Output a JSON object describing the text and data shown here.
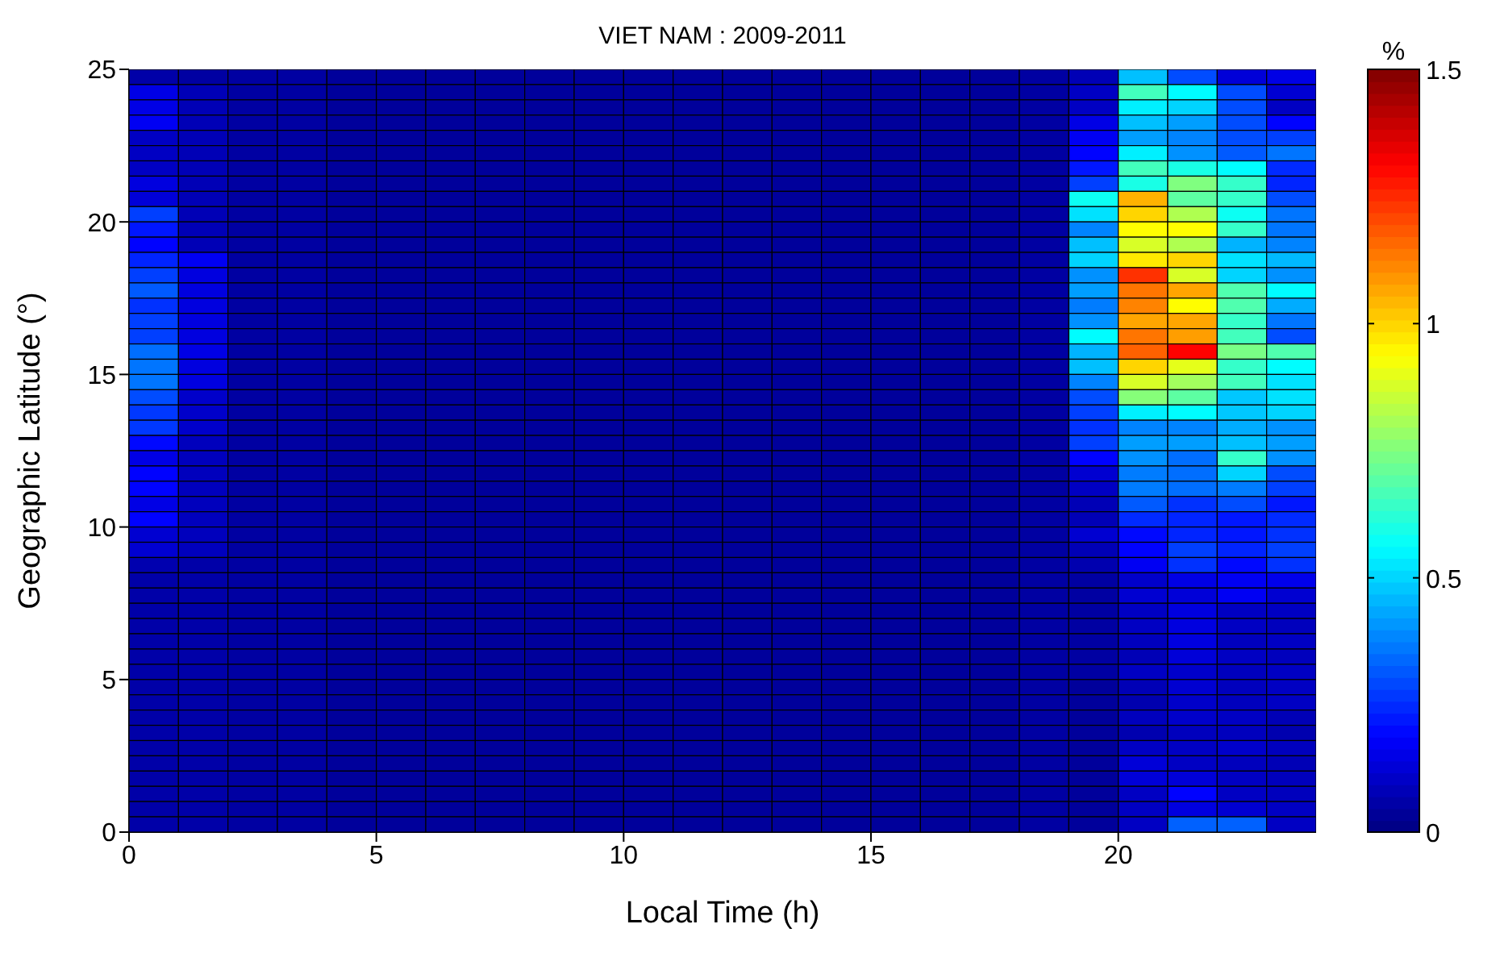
{
  "chart_data": {
    "type": "heatmap",
    "title": "VIET NAM : 2009-2011",
    "xlabel": "Local Time (h)",
    "ylabel": "Geographic Latitude (°)",
    "clabel": "%",
    "x": [
      0.5,
      1.5,
      2.5,
      3.5,
      4.5,
      5.5,
      6.5,
      7.5,
      8.5,
      9.5,
      10.5,
      11.5,
      12.5,
      13.5,
      14.5,
      15.5,
      16.5,
      17.5,
      18.5,
      19.5,
      20.5,
      21.5,
      22.5,
      23.5
    ],
    "y": [
      24.75,
      24.25,
      23.75,
      23.25,
      22.75,
      22.25,
      21.75,
      21.25,
      20.75,
      20.25,
      19.75,
      19.25,
      18.75,
      18.25,
      17.75,
      17.25,
      16.75,
      16.25,
      15.75,
      15.25,
      14.75,
      14.25,
      13.75,
      13.25,
      12.75,
      12.25,
      11.75,
      11.25,
      10.75,
      10.25,
      9.75,
      9.25,
      8.75,
      8.25,
      7.75,
      7.25,
      6.75,
      6.25,
      5.75,
      5.25,
      4.75,
      4.25,
      3.75,
      3.25,
      2.75,
      2.25,
      1.75,
      1.25,
      0.75,
      0.25
    ],
    "xlim": [
      0,
      24
    ],
    "xticks": [
      0,
      5,
      10,
      15,
      20
    ],
    "ylim": [
      0,
      25
    ],
    "yticks": [
      0,
      5,
      10,
      15,
      20,
      25
    ],
    "clim": [
      0,
      1.5
    ],
    "cticks": [
      0,
      0.5,
      1,
      1.5
    ],
    "cells": [
      [
        0.06,
        0.05,
        0.05,
        0.05,
        0.04,
        0.04,
        0.04,
        0.04,
        0.04,
        0.04,
        0.04,
        0.04,
        0.04,
        0.04,
        0.04,
        0.04,
        0.04,
        0.04,
        0.05,
        0.08,
        0.47,
        0.3,
        0.13,
        0.15
      ],
      [
        0.15,
        0.08,
        0.05,
        0.05,
        0.04,
        0.04,
        0.04,
        0.04,
        0.04,
        0.04,
        0.04,
        0.04,
        0.04,
        0.04,
        0.04,
        0.04,
        0.04,
        0.04,
        0.05,
        0.1,
        0.66,
        0.56,
        0.3,
        0.12
      ],
      [
        0.15,
        0.08,
        0.05,
        0.05,
        0.04,
        0.04,
        0.04,
        0.04,
        0.04,
        0.04,
        0.04,
        0.04,
        0.04,
        0.04,
        0.04,
        0.04,
        0.04,
        0.04,
        0.05,
        0.1,
        0.54,
        0.5,
        0.3,
        0.1
      ],
      [
        0.17,
        0.08,
        0.05,
        0.05,
        0.04,
        0.04,
        0.04,
        0.04,
        0.04,
        0.04,
        0.04,
        0.04,
        0.04,
        0.04,
        0.04,
        0.04,
        0.04,
        0.04,
        0.05,
        0.15,
        0.47,
        0.42,
        0.3,
        0.19
      ],
      [
        0.1,
        0.08,
        0.05,
        0.05,
        0.04,
        0.04,
        0.04,
        0.04,
        0.04,
        0.04,
        0.04,
        0.04,
        0.04,
        0.04,
        0.04,
        0.04,
        0.04,
        0.04,
        0.05,
        0.17,
        0.42,
        0.38,
        0.3,
        0.28
      ],
      [
        0.1,
        0.08,
        0.05,
        0.05,
        0.04,
        0.04,
        0.04,
        0.04,
        0.04,
        0.04,
        0.04,
        0.04,
        0.04,
        0.04,
        0.04,
        0.04,
        0.04,
        0.04,
        0.05,
        0.19,
        0.54,
        0.4,
        0.32,
        0.36
      ],
      [
        0.1,
        0.08,
        0.05,
        0.05,
        0.04,
        0.04,
        0.04,
        0.04,
        0.04,
        0.04,
        0.04,
        0.04,
        0.04,
        0.04,
        0.04,
        0.04,
        0.04,
        0.04,
        0.05,
        0.22,
        0.66,
        0.6,
        0.56,
        0.25
      ],
      [
        0.14,
        0.08,
        0.05,
        0.05,
        0.04,
        0.04,
        0.04,
        0.04,
        0.04,
        0.04,
        0.04,
        0.04,
        0.04,
        0.04,
        0.04,
        0.04,
        0.04,
        0.04,
        0.05,
        0.28,
        0.6,
        0.75,
        0.64,
        0.24
      ],
      [
        0.13,
        0.08,
        0.05,
        0.05,
        0.04,
        0.04,
        0.04,
        0.04,
        0.04,
        0.04,
        0.04,
        0.04,
        0.04,
        0.04,
        0.04,
        0.04,
        0.04,
        0.04,
        0.05,
        0.58,
        1.05,
        0.7,
        0.64,
        0.3
      ],
      [
        0.28,
        0.08,
        0.05,
        0.05,
        0.04,
        0.04,
        0.04,
        0.04,
        0.04,
        0.04,
        0.04,
        0.04,
        0.04,
        0.04,
        0.04,
        0.04,
        0.04,
        0.04,
        0.05,
        0.52,
        1,
        0.82,
        0.58,
        0.36
      ],
      [
        0.22,
        0.08,
        0.05,
        0.05,
        0.04,
        0.04,
        0.04,
        0.04,
        0.04,
        0.04,
        0.04,
        0.04,
        0.04,
        0.04,
        0.04,
        0.04,
        0.04,
        0.04,
        0.05,
        0.38,
        0.94,
        0.94,
        0.64,
        0.36
      ],
      [
        0.19,
        0.08,
        0.05,
        0.05,
        0.04,
        0.04,
        0.04,
        0.04,
        0.04,
        0.04,
        0.04,
        0.04,
        0.04,
        0.04,
        0.04,
        0.04,
        0.04,
        0.04,
        0.05,
        0.47,
        0.88,
        0.82,
        0.45,
        0.38
      ],
      [
        0.24,
        0.17,
        0.05,
        0.05,
        0.04,
        0.04,
        0.04,
        0.04,
        0.04,
        0.04,
        0.04,
        0.04,
        0.04,
        0.04,
        0.04,
        0.04,
        0.04,
        0.04,
        0.05,
        0.5,
        0.97,
        1,
        0.52,
        0.46
      ],
      [
        0.28,
        0.14,
        0.05,
        0.05,
        0.04,
        0.04,
        0.04,
        0.04,
        0.04,
        0.04,
        0.04,
        0.04,
        0.04,
        0.04,
        0.04,
        0.04,
        0.04,
        0.04,
        0.05,
        0.4,
        1.24,
        0.88,
        0.5,
        0.4
      ],
      [
        0.32,
        0.14,
        0.05,
        0.05,
        0.04,
        0.04,
        0.04,
        0.04,
        0.04,
        0.04,
        0.04,
        0.04,
        0.04,
        0.04,
        0.04,
        0.04,
        0.04,
        0.04,
        0.05,
        0.42,
        1.14,
        1.07,
        0.68,
        0.56
      ],
      [
        0.26,
        0.14,
        0.05,
        0.05,
        0.04,
        0.04,
        0.04,
        0.04,
        0.04,
        0.04,
        0.04,
        0.04,
        0.04,
        0.04,
        0.04,
        0.04,
        0.04,
        0.04,
        0.05,
        0.37,
        1.12,
        0.94,
        0.68,
        0.44
      ],
      [
        0.28,
        0.14,
        0.05,
        0.05,
        0.04,
        0.04,
        0.04,
        0.04,
        0.04,
        0.04,
        0.04,
        0.04,
        0.04,
        0.04,
        0.04,
        0.04,
        0.04,
        0.04,
        0.05,
        0.4,
        1.07,
        1.07,
        0.64,
        0.36
      ],
      [
        0.28,
        0.14,
        0.05,
        0.05,
        0.04,
        0.04,
        0.04,
        0.04,
        0.04,
        0.04,
        0.04,
        0.04,
        0.04,
        0.04,
        0.04,
        0.04,
        0.04,
        0.04,
        0.05,
        0.56,
        1.14,
        1.08,
        0.66,
        0.3
      ],
      [
        0.35,
        0.15,
        0.05,
        0.05,
        0.04,
        0.04,
        0.04,
        0.04,
        0.04,
        0.04,
        0.04,
        0.04,
        0.04,
        0.04,
        0.04,
        0.04,
        0.04,
        0.04,
        0.05,
        0.45,
        1.17,
        1.31,
        0.74,
        0.68
      ],
      [
        0.36,
        0.14,
        0.05,
        0.05,
        0.04,
        0.04,
        0.04,
        0.04,
        0.04,
        0.04,
        0.04,
        0.04,
        0.04,
        0.04,
        0.04,
        0.04,
        0.04,
        0.04,
        0.05,
        0.47,
        1,
        0.9,
        0.64,
        0.56
      ],
      [
        0.36,
        0.14,
        0.05,
        0.05,
        0.04,
        0.04,
        0.04,
        0.04,
        0.04,
        0.04,
        0.04,
        0.04,
        0.04,
        0.04,
        0.04,
        0.04,
        0.04,
        0.04,
        0.05,
        0.38,
        0.88,
        0.8,
        0.66,
        0.52
      ],
      [
        0.3,
        0.11,
        0.05,
        0.05,
        0.04,
        0.04,
        0.04,
        0.04,
        0.04,
        0.04,
        0.04,
        0.04,
        0.04,
        0.04,
        0.04,
        0.04,
        0.04,
        0.04,
        0.05,
        0.3,
        0.76,
        0.7,
        0.48,
        0.52
      ],
      [
        0.27,
        0.11,
        0.05,
        0.05,
        0.04,
        0.04,
        0.04,
        0.04,
        0.04,
        0.04,
        0.04,
        0.04,
        0.04,
        0.04,
        0.04,
        0.04,
        0.04,
        0.04,
        0.05,
        0.28,
        0.54,
        0.56,
        0.48,
        0.5
      ],
      [
        0.27,
        0.11,
        0.05,
        0.05,
        0.04,
        0.04,
        0.04,
        0.04,
        0.04,
        0.04,
        0.04,
        0.04,
        0.04,
        0.04,
        0.04,
        0.04,
        0.04,
        0.04,
        0.05,
        0.26,
        0.38,
        0.38,
        0.44,
        0.4
      ],
      [
        0.2,
        0.09,
        0.05,
        0.05,
        0.04,
        0.04,
        0.04,
        0.04,
        0.04,
        0.04,
        0.04,
        0.04,
        0.04,
        0.04,
        0.04,
        0.04,
        0.04,
        0.04,
        0.05,
        0.28,
        0.42,
        0.42,
        0.47,
        0.42
      ],
      [
        0.15,
        0.09,
        0.05,
        0.05,
        0.04,
        0.04,
        0.04,
        0.04,
        0.04,
        0.04,
        0.04,
        0.04,
        0.04,
        0.04,
        0.04,
        0.04,
        0.04,
        0.04,
        0.05,
        0.19,
        0.4,
        0.35,
        0.64,
        0.4
      ],
      [
        0.19,
        0.09,
        0.05,
        0.05,
        0.04,
        0.04,
        0.04,
        0.04,
        0.04,
        0.04,
        0.04,
        0.04,
        0.04,
        0.04,
        0.04,
        0.04,
        0.04,
        0.04,
        0.05,
        0.12,
        0.37,
        0.35,
        0.5,
        0.3
      ],
      [
        0.19,
        0.09,
        0.05,
        0.05,
        0.04,
        0.04,
        0.04,
        0.04,
        0.04,
        0.04,
        0.04,
        0.04,
        0.04,
        0.04,
        0.04,
        0.04,
        0.04,
        0.04,
        0.05,
        0.1,
        0.37,
        0.35,
        0.37,
        0.28
      ],
      [
        0.15,
        0.09,
        0.05,
        0.05,
        0.04,
        0.04,
        0.04,
        0.04,
        0.04,
        0.04,
        0.04,
        0.04,
        0.04,
        0.04,
        0.04,
        0.04,
        0.04,
        0.04,
        0.05,
        0.08,
        0.32,
        0.26,
        0.3,
        0.22
      ],
      [
        0.19,
        0.09,
        0.05,
        0.05,
        0.04,
        0.04,
        0.04,
        0.04,
        0.04,
        0.04,
        0.04,
        0.04,
        0.04,
        0.04,
        0.04,
        0.04,
        0.04,
        0.04,
        0.05,
        0.08,
        0.25,
        0.24,
        0.22,
        0.25
      ],
      [
        0.12,
        0.09,
        0.05,
        0.05,
        0.04,
        0.04,
        0.04,
        0.04,
        0.04,
        0.04,
        0.04,
        0.04,
        0.04,
        0.04,
        0.04,
        0.04,
        0.04,
        0.04,
        0.05,
        0.12,
        0.2,
        0.24,
        0.22,
        0.26
      ],
      [
        0.12,
        0.09,
        0.05,
        0.05,
        0.04,
        0.04,
        0.04,
        0.04,
        0.04,
        0.04,
        0.04,
        0.04,
        0.04,
        0.04,
        0.04,
        0.04,
        0.04,
        0.04,
        0.05,
        0.08,
        0.19,
        0.28,
        0.24,
        0.28
      ],
      [
        0.07,
        0.06,
        0.05,
        0.05,
        0.04,
        0.04,
        0.04,
        0.04,
        0.04,
        0.04,
        0.04,
        0.04,
        0.04,
        0.04,
        0.04,
        0.04,
        0.04,
        0.04,
        0.05,
        0.07,
        0.17,
        0.26,
        0.2,
        0.26
      ],
      [
        0.06,
        0.06,
        0.05,
        0.05,
        0.04,
        0.04,
        0.04,
        0.04,
        0.04,
        0.04,
        0.04,
        0.04,
        0.04,
        0.04,
        0.04,
        0.04,
        0.04,
        0.04,
        0.05,
        0.05,
        0.11,
        0.15,
        0.17,
        0.16
      ],
      [
        0.06,
        0.06,
        0.05,
        0.05,
        0.04,
        0.04,
        0.04,
        0.04,
        0.04,
        0.04,
        0.04,
        0.04,
        0.04,
        0.04,
        0.04,
        0.04,
        0.04,
        0.04,
        0.05,
        0.05,
        0.12,
        0.13,
        0.17,
        0.12
      ],
      [
        0.06,
        0.06,
        0.05,
        0.05,
        0.04,
        0.04,
        0.04,
        0.04,
        0.04,
        0.04,
        0.04,
        0.04,
        0.04,
        0.04,
        0.04,
        0.04,
        0.04,
        0.04,
        0.05,
        0.05,
        0.1,
        0.14,
        0.1,
        0.1
      ],
      [
        0.06,
        0.06,
        0.05,
        0.05,
        0.04,
        0.04,
        0.04,
        0.04,
        0.04,
        0.04,
        0.04,
        0.04,
        0.04,
        0.04,
        0.04,
        0.04,
        0.04,
        0.04,
        0.05,
        0.05,
        0.1,
        0.14,
        0.1,
        0.09
      ],
      [
        0.06,
        0.06,
        0.05,
        0.05,
        0.04,
        0.04,
        0.04,
        0.04,
        0.04,
        0.04,
        0.04,
        0.04,
        0.04,
        0.04,
        0.04,
        0.04,
        0.04,
        0.04,
        0.05,
        0.05,
        0.09,
        0.14,
        0.09,
        0.1
      ],
      [
        0.06,
        0.06,
        0.05,
        0.05,
        0.04,
        0.04,
        0.04,
        0.04,
        0.04,
        0.04,
        0.04,
        0.04,
        0.04,
        0.04,
        0.04,
        0.04,
        0.04,
        0.04,
        0.05,
        0.05,
        0.08,
        0.13,
        0.1,
        0.09
      ],
      [
        0.06,
        0.06,
        0.05,
        0.05,
        0.04,
        0.04,
        0.04,
        0.04,
        0.04,
        0.04,
        0.04,
        0.04,
        0.04,
        0.04,
        0.04,
        0.04,
        0.04,
        0.04,
        0.05,
        0.05,
        0.1,
        0.11,
        0.09,
        0.1
      ],
      [
        0.06,
        0.06,
        0.05,
        0.05,
        0.04,
        0.04,
        0.04,
        0.04,
        0.04,
        0.04,
        0.04,
        0.04,
        0.04,
        0.04,
        0.04,
        0.04,
        0.04,
        0.04,
        0.05,
        0.04,
        0.08,
        0.12,
        0.09,
        0.1
      ],
      [
        0.06,
        0.06,
        0.05,
        0.05,
        0.04,
        0.04,
        0.04,
        0.04,
        0.04,
        0.04,
        0.04,
        0.04,
        0.04,
        0.04,
        0.04,
        0.04,
        0.04,
        0.04,
        0.05,
        0.04,
        0.07,
        0.11,
        0.09,
        0.1
      ],
      [
        0.06,
        0.06,
        0.05,
        0.05,
        0.04,
        0.04,
        0.04,
        0.04,
        0.04,
        0.04,
        0.04,
        0.04,
        0.04,
        0.04,
        0.04,
        0.04,
        0.04,
        0.04,
        0.05,
        0.04,
        0.09,
        0.11,
        0.1,
        0.08
      ],
      [
        0.06,
        0.06,
        0.05,
        0.05,
        0.04,
        0.04,
        0.04,
        0.04,
        0.04,
        0.04,
        0.04,
        0.04,
        0.04,
        0.04,
        0.04,
        0.04,
        0.04,
        0.04,
        0.05,
        0.04,
        0.07,
        0.09,
        0.09,
        0.07
      ],
      [
        0.06,
        0.06,
        0.05,
        0.05,
        0.04,
        0.04,
        0.04,
        0.04,
        0.04,
        0.04,
        0.04,
        0.04,
        0.04,
        0.04,
        0.04,
        0.04,
        0.04,
        0.04,
        0.05,
        0.04,
        0.1,
        0.1,
        0.11,
        0.09
      ],
      [
        0.06,
        0.06,
        0.05,
        0.05,
        0.04,
        0.04,
        0.04,
        0.04,
        0.04,
        0.04,
        0.04,
        0.04,
        0.04,
        0.04,
        0.04,
        0.04,
        0.04,
        0.04,
        0.05,
        0.04,
        0.13,
        0.1,
        0.09,
        0.08
      ],
      [
        0.06,
        0.06,
        0.05,
        0.05,
        0.04,
        0.04,
        0.04,
        0.04,
        0.04,
        0.04,
        0.04,
        0.04,
        0.04,
        0.04,
        0.04,
        0.04,
        0.04,
        0.04,
        0.05,
        0.04,
        0.13,
        0.13,
        0.1,
        0.09
      ],
      [
        0.06,
        0.06,
        0.05,
        0.05,
        0.04,
        0.04,
        0.04,
        0.04,
        0.04,
        0.04,
        0.04,
        0.04,
        0.04,
        0.04,
        0.04,
        0.04,
        0.04,
        0.04,
        0.05,
        0.04,
        0.1,
        0.19,
        0.1,
        0.09
      ],
      [
        0.06,
        0.06,
        0.05,
        0.05,
        0.04,
        0.04,
        0.04,
        0.04,
        0.04,
        0.04,
        0.04,
        0.04,
        0.04,
        0.04,
        0.04,
        0.04,
        0.04,
        0.04,
        0.05,
        0.04,
        0.1,
        0.14,
        0.12,
        0.1
      ],
      [
        0.06,
        0.06,
        0.05,
        0.05,
        0.04,
        0.04,
        0.04,
        0.04,
        0.04,
        0.04,
        0.04,
        0.04,
        0.04,
        0.04,
        0.04,
        0.04,
        0.04,
        0.04,
        0.05,
        0.04,
        0.1,
        0.33,
        0.33,
        0.1
      ]
    ]
  }
}
